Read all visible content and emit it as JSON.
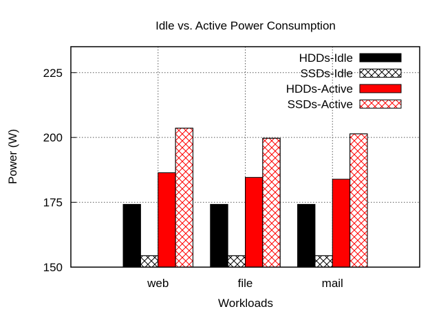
{
  "chart_data": {
    "type": "bar",
    "title": "Idle vs. Active Power Consumption",
    "xlabel": "Workloads",
    "ylabel": "Power (W)",
    "categories": [
      "web",
      "file",
      "mail"
    ],
    "ylim": [
      150,
      235
    ],
    "yticks": [
      150,
      175,
      200,
      225
    ],
    "grid": true,
    "legend_position": "top-right",
    "series": [
      {
        "name": "HDDs-Idle",
        "values": [
          174.2,
          174.2,
          174.2
        ],
        "color": "#000000",
        "pattern": "solid"
      },
      {
        "name": "SSDs-Idle",
        "values": [
          154.4,
          154.4,
          154.4
        ],
        "color": "#000000",
        "pattern": "crosshatch"
      },
      {
        "name": "HDDs-Active",
        "values": [
          186.4,
          184.6,
          183.9
        ],
        "color": "#ff0000",
        "pattern": "solid"
      },
      {
        "name": "SSDs-Active",
        "values": [
          203.6,
          199.7,
          201.4
        ],
        "color": "#ff0000",
        "pattern": "crosshatch"
      }
    ]
  }
}
